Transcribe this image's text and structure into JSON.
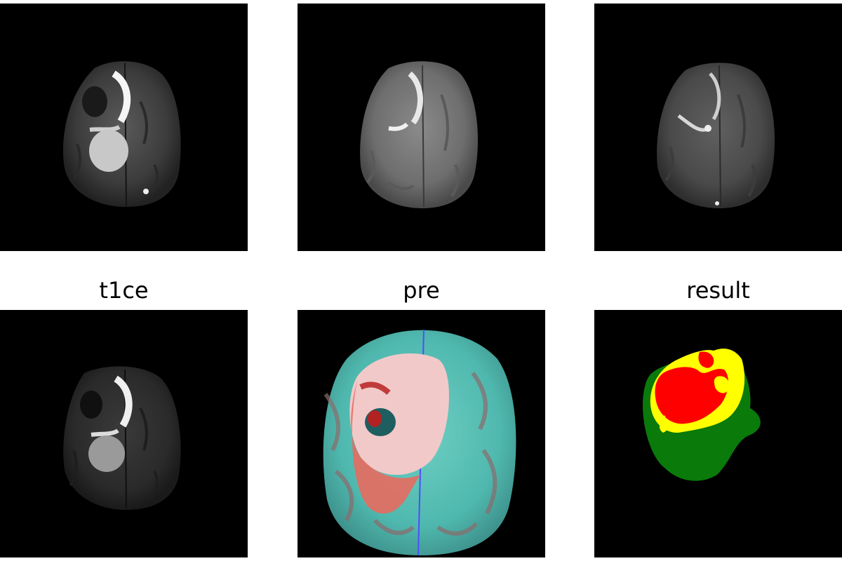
{
  "figure": {
    "captions": [
      "t1ce",
      "pre",
      "result"
    ],
    "background_color": "#ffffff",
    "panel_background": "#000000"
  },
  "rows": [
    {
      "row": 1,
      "panels": [
        {
          "name": "mri-slice-top-left",
          "description_label": ""
        },
        {
          "name": "mri-slice-top-center",
          "description_label": ""
        },
        {
          "name": "mri-slice-top-right",
          "description_label": ""
        }
      ]
    },
    {
      "row": 2,
      "panels": [
        {
          "name": "t1ce-slice"
        },
        {
          "name": "pre-colored-composite"
        },
        {
          "name": "result-segmentation"
        }
      ]
    }
  ],
  "segmentation_colors": {
    "edema": "#0a7a0a",
    "enhancing": "#ffff00",
    "core": "#ff0000"
  }
}
